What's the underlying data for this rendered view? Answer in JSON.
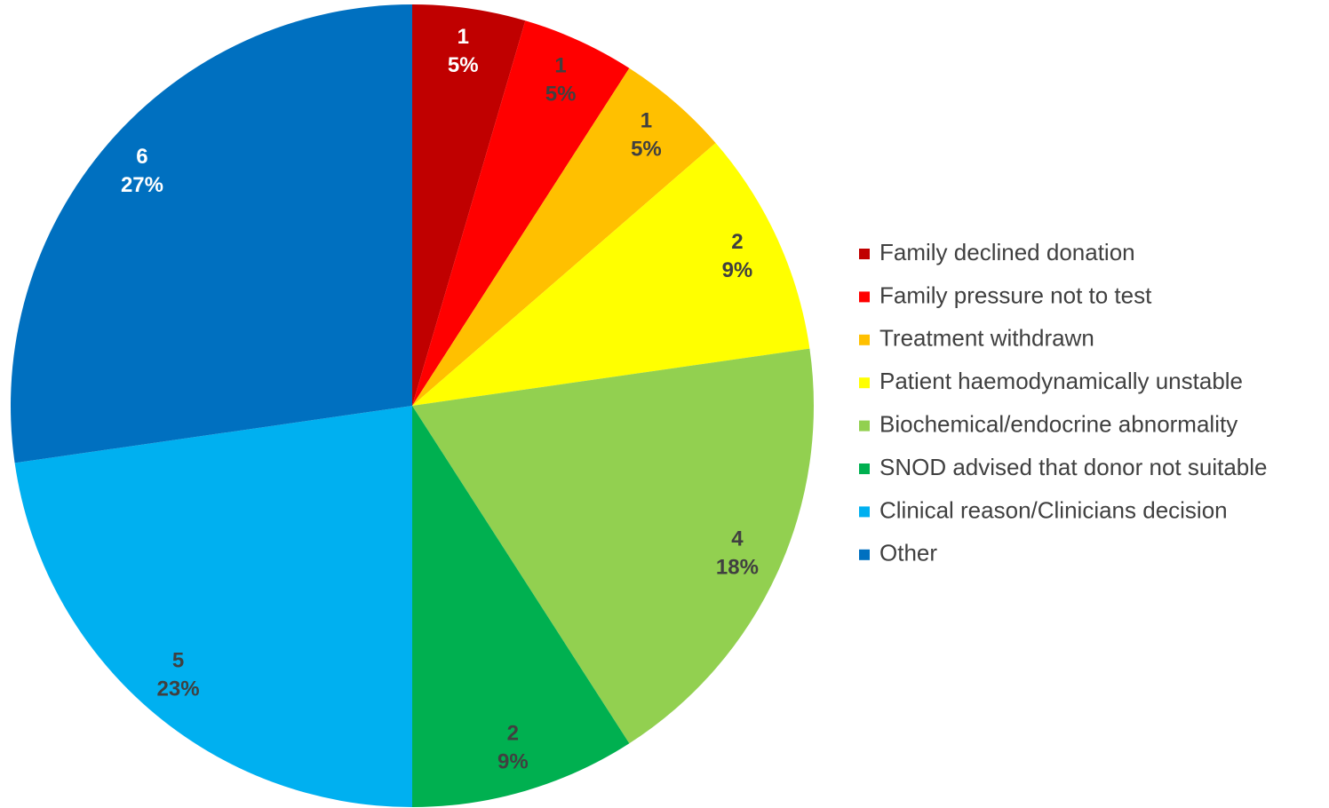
{
  "chart_data": {
    "type": "pie",
    "categories": [
      "Family declined donation",
      "Family pressure not to test",
      "Treatment withdrawn",
      "Patient haemodynamically unstable",
      "Biochemical/endocrine abnormality",
      "SNOD advised that donor not suitable",
      "Clinical reason/Clinicians decision",
      "Other"
    ],
    "values": [
      1,
      1,
      1,
      2,
      4,
      2,
      5,
      6
    ],
    "percent_labels": [
      "5%",
      "5%",
      "5%",
      "9%",
      "18%",
      "9%",
      "23%",
      "27%"
    ],
    "colors": [
      "#c00000",
      "#ff0000",
      "#ffc000",
      "#ffff00",
      "#92d050",
      "#00b050",
      "#00b0f0",
      "#0070c0"
    ],
    "label_colors": [
      "#ffffff",
      "#404040",
      "#404040",
      "#404040",
      "#404040",
      "#404040",
      "#404040",
      "#ffffff"
    ],
    "legend": "right"
  }
}
